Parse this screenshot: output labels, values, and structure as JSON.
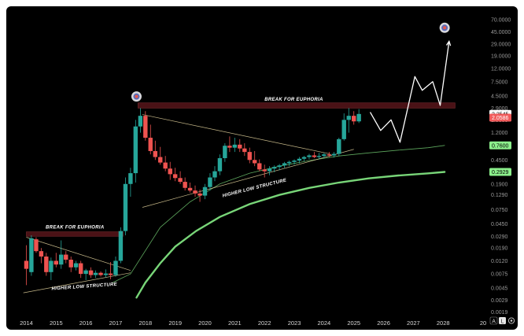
{
  "chart_data": {
    "type": "candlestick",
    "y_scale": "log",
    "ylim": [
      0.0015,
      95
    ],
    "y_ticks": [
      "70.0000",
      "45.0000",
      "29.0000",
      "19.0000",
      "12.0000",
      "7.5000",
      "4.5000",
      "2.9000",
      "1.9000",
      "1.2000",
      "0.7600",
      "0.4500",
      "0.2900",
      "0.1900",
      "0.1290",
      "0.0750",
      "0.0450",
      "0.0290",
      "0.0190",
      "0.0120",
      "0.0075",
      "0.0045",
      "0.0029",
      "0.0019"
    ],
    "y_tick_values": [
      70,
      45,
      29,
      19,
      12,
      7.5,
      4.5,
      2.9,
      1.9,
      1.2,
      0.76,
      0.45,
      0.29,
      0.19,
      0.129,
      0.075,
      0.045,
      0.029,
      0.019,
      0.012,
      0.0075,
      0.0045,
      0.0029,
      0.0019
    ],
    "x_ticks": [
      "2014",
      "2015",
      "2016",
      "2017",
      "2018",
      "2019",
      "2020",
      "2021",
      "2022",
      "2023",
      "2024",
      "2025",
      "2026",
      "2027",
      "2028",
      "20"
    ],
    "xlim": [
      2013.75,
      2029.5
    ],
    "candles": [
      {
        "t": 2014.0,
        "o": 0.012,
        "h": 0.021,
        "l": 0.005,
        "c": 0.009
      },
      {
        "t": 2014.17,
        "o": 0.008,
        "h": 0.03,
        "l": 0.007,
        "c": 0.027
      },
      {
        "t": 2014.33,
        "o": 0.026,
        "h": 0.028,
        "l": 0.016,
        "c": 0.017
      },
      {
        "t": 2014.5,
        "o": 0.017,
        "h": 0.019,
        "l": 0.011,
        "c": 0.014
      },
      {
        "t": 2014.67,
        "o": 0.014,
        "h": 0.016,
        "l": 0.007,
        "c": 0.008
      },
      {
        "t": 2014.83,
        "o": 0.008,
        "h": 0.0135,
        "l": 0.006,
        "c": 0.012
      },
      {
        "t": 2015.0,
        "o": 0.012,
        "h": 0.016,
        "l": 0.0095,
        "c": 0.0105
      },
      {
        "t": 2015.17,
        "o": 0.0105,
        "h": 0.025,
        "l": 0.009,
        "c": 0.015
      },
      {
        "t": 2015.33,
        "o": 0.015,
        "h": 0.017,
        "l": 0.011,
        "c": 0.0125
      },
      {
        "t": 2015.5,
        "o": 0.0125,
        "h": 0.014,
        "l": 0.008,
        "c": 0.0095
      },
      {
        "t": 2015.67,
        "o": 0.0095,
        "h": 0.012,
        "l": 0.0085,
        "c": 0.011
      },
      {
        "t": 2015.83,
        "o": 0.011,
        "h": 0.012,
        "l": 0.0065,
        "c": 0.0075
      },
      {
        "t": 2016.0,
        "o": 0.0075,
        "h": 0.009,
        "l": 0.006,
        "c": 0.0085
      },
      {
        "t": 2016.17,
        "o": 0.0085,
        "h": 0.0095,
        "l": 0.0065,
        "c": 0.0072
      },
      {
        "t": 2016.33,
        "o": 0.0072,
        "h": 0.0085,
        "l": 0.0065,
        "c": 0.0078
      },
      {
        "t": 2016.5,
        "o": 0.0078,
        "h": 0.0082,
        "l": 0.0068,
        "c": 0.0072
      },
      {
        "t": 2016.67,
        "o": 0.0072,
        "h": 0.0088,
        "l": 0.0066,
        "c": 0.0076
      },
      {
        "t": 2016.83,
        "o": 0.0076,
        "h": 0.0115,
        "l": 0.0062,
        "c": 0.0072
      },
      {
        "t": 2017.0,
        "o": 0.0072,
        "h": 0.014,
        "l": 0.0068,
        "c": 0.012
      },
      {
        "t": 2017.17,
        "o": 0.012,
        "h": 0.04,
        "l": 0.011,
        "c": 0.035
      },
      {
        "t": 2017.33,
        "o": 0.035,
        "h": 0.24,
        "l": 0.03,
        "c": 0.19
      },
      {
        "t": 2017.5,
        "o": 0.19,
        "h": 0.34,
        "l": 0.12,
        "c": 0.28
      },
      {
        "t": 2017.67,
        "o": 0.28,
        "h": 1.9,
        "l": 0.2,
        "c": 1.5
      },
      {
        "t": 2017.83,
        "o": 1.5,
        "h": 2.9,
        "l": 1.2,
        "c": 2.2
      },
      {
        "t": 2018.0,
        "o": 2.2,
        "h": 2.6,
        "l": 0.9,
        "c": 1.0
      },
      {
        "t": 2018.17,
        "o": 1.0,
        "h": 1.6,
        "l": 0.55,
        "c": 0.62
      },
      {
        "t": 2018.33,
        "o": 0.62,
        "h": 0.9,
        "l": 0.45,
        "c": 0.5
      },
      {
        "t": 2018.5,
        "o": 0.5,
        "h": 0.72,
        "l": 0.38,
        "c": 0.41
      },
      {
        "t": 2018.67,
        "o": 0.41,
        "h": 0.52,
        "l": 0.3,
        "c": 0.33
      },
      {
        "t": 2018.83,
        "o": 0.33,
        "h": 0.42,
        "l": 0.22,
        "c": 0.27
      },
      {
        "t": 2019.0,
        "o": 0.27,
        "h": 0.34,
        "l": 0.21,
        "c": 0.235
      },
      {
        "t": 2019.17,
        "o": 0.235,
        "h": 0.3,
        "l": 0.19,
        "c": 0.205
      },
      {
        "t": 2019.33,
        "o": 0.205,
        "h": 0.24,
        "l": 0.15,
        "c": 0.165
      },
      {
        "t": 2019.5,
        "o": 0.165,
        "h": 0.2,
        "l": 0.14,
        "c": 0.15
      },
      {
        "t": 2019.67,
        "o": 0.15,
        "h": 0.18,
        "l": 0.12,
        "c": 0.135
      },
      {
        "t": 2019.83,
        "o": 0.135,
        "h": 0.155,
        "l": 0.1,
        "c": 0.125
      },
      {
        "t": 2020.0,
        "o": 0.125,
        "h": 0.19,
        "l": 0.11,
        "c": 0.17
      },
      {
        "t": 2020.17,
        "o": 0.17,
        "h": 0.28,
        "l": 0.15,
        "c": 0.24
      },
      {
        "t": 2020.33,
        "o": 0.24,
        "h": 0.36,
        "l": 0.21,
        "c": 0.3
      },
      {
        "t": 2020.5,
        "o": 0.3,
        "h": 0.55,
        "l": 0.26,
        "c": 0.48
      },
      {
        "t": 2020.67,
        "o": 0.48,
        "h": 0.82,
        "l": 0.42,
        "c": 0.75
      },
      {
        "t": 2020.83,
        "o": 0.75,
        "h": 1.05,
        "l": 0.6,
        "c": 0.7
      },
      {
        "t": 2021.0,
        "o": 0.7,
        "h": 1.0,
        "l": 0.6,
        "c": 0.78
      },
      {
        "t": 2021.17,
        "o": 0.78,
        "h": 0.95,
        "l": 0.6,
        "c": 0.68
      },
      {
        "t": 2021.33,
        "o": 0.68,
        "h": 0.82,
        "l": 0.52,
        "c": 0.6
      },
      {
        "t": 2021.5,
        "o": 0.6,
        "h": 0.7,
        "l": 0.4,
        "c": 0.45
      },
      {
        "t": 2021.67,
        "o": 0.45,
        "h": 0.62,
        "l": 0.36,
        "c": 0.4
      },
      {
        "t": 2021.83,
        "o": 0.4,
        "h": 0.46,
        "l": 0.3,
        "c": 0.32
      },
      {
        "t": 2022.0,
        "o": 0.32,
        "h": 0.38,
        "l": 0.24,
        "c": 0.3
      },
      {
        "t": 2022.17,
        "o": 0.3,
        "h": 0.36,
        "l": 0.26,
        "c": 0.33
      },
      {
        "t": 2022.33,
        "o": 0.33,
        "h": 0.37,
        "l": 0.29,
        "c": 0.35
      },
      {
        "t": 2022.5,
        "o": 0.35,
        "h": 0.39,
        "l": 0.31,
        "c": 0.37
      },
      {
        "t": 2022.67,
        "o": 0.37,
        "h": 0.42,
        "l": 0.34,
        "c": 0.4
      },
      {
        "t": 2022.83,
        "o": 0.4,
        "h": 0.44,
        "l": 0.36,
        "c": 0.42
      },
      {
        "t": 2023.0,
        "o": 0.42,
        "h": 0.46,
        "l": 0.38,
        "c": 0.44
      },
      {
        "t": 2023.17,
        "o": 0.44,
        "h": 0.5,
        "l": 0.4,
        "c": 0.47
      },
      {
        "t": 2023.33,
        "o": 0.47,
        "h": 0.52,
        "l": 0.43,
        "c": 0.5
      },
      {
        "t": 2023.5,
        "o": 0.5,
        "h": 0.56,
        "l": 0.46,
        "c": 0.53
      },
      {
        "t": 2023.67,
        "o": 0.53,
        "h": 0.6,
        "l": 0.48,
        "c": 0.5
      },
      {
        "t": 2023.83,
        "o": 0.5,
        "h": 0.58,
        "l": 0.46,
        "c": 0.52
      },
      {
        "t": 2024.0,
        "o": 0.52,
        "h": 0.58,
        "l": 0.48,
        "c": 0.55
      },
      {
        "t": 2024.17,
        "o": 0.55,
        "h": 0.6,
        "l": 0.5,
        "c": 0.53
      },
      {
        "t": 2024.33,
        "o": 0.53,
        "h": 0.6,
        "l": 0.49,
        "c": 0.56
      },
      {
        "t": 2024.5,
        "o": 0.56,
        "h": 1.0,
        "l": 0.52,
        "c": 0.95
      },
      {
        "t": 2024.67,
        "o": 0.95,
        "h": 2.4,
        "l": 0.9,
        "c": 1.9
      },
      {
        "t": 2024.83,
        "o": 1.9,
        "h": 2.9,
        "l": 1.2,
        "c": 2.2
      },
      {
        "t": 2025.0,
        "o": 2.2,
        "h": 2.6,
        "l": 1.6,
        "c": 1.8
      },
      {
        "t": 2025.17,
        "o": 1.8,
        "h": 2.8,
        "l": 1.7,
        "c": 2.35
      }
    ],
    "colors": {
      "up": "#26a69a",
      "down": "#ef5350",
      "band": "#4a1216",
      "projection": "#ffffff",
      "curve": "#7ee07e",
      "structure": "#e8d7a0"
    },
    "annotations": {
      "band_2017_label": "BREAK FOR EUPHORIA",
      "band_2025_label": "BREAK FOR EUPHORIA",
      "structure_2016_label": "HIGHER LOW STRUCTURE",
      "structure_2021_label": "HIGHER LOW STRUCTURE"
    },
    "band_2017": {
      "t0": 2014.0,
      "t1": 2017.25,
      "hi": 0.034,
      "lo": 0.029
    },
    "band_2025": {
      "t0": 2017.75,
      "t1": 2028.4,
      "hi": 3.5,
      "lo": 2.9
    },
    "price_tags": [
      {
        "text": "2.3545",
        "value": 2.3545,
        "bg": "#ffffff",
        "fg": "#000000"
      },
      {
        "text": "2.0586",
        "value": 2.0586,
        "bg": "#f05a5a",
        "fg": "#ffffff"
      },
      {
        "text": "0.7600",
        "value": 0.76,
        "bg": "#8cf08c",
        "fg": "#000000"
      },
      {
        "text": "0.2929",
        "value": 0.2929,
        "bg": "#8cf08c",
        "fg": "#000000"
      }
    ],
    "projection_path": [
      [
        2025.55,
        2.5
      ],
      [
        2025.9,
        1.3
      ],
      [
        2026.25,
        1.9
      ],
      [
        2026.55,
        0.85
      ],
      [
        2027.05,
        9.0
      ],
      [
        2027.3,
        5.5
      ],
      [
        2027.65,
        7.5
      ],
      [
        2027.9,
        3.2
      ],
      [
        2028.2,
        32
      ]
    ],
    "trend_lines": [
      {
        "name": "triangle_2014_upper",
        "points": [
          [
            2014.0,
            0.028
          ],
          [
            2017.5,
            0.0085
          ]
        ]
      },
      {
        "name": "triangle_2014_lower",
        "points": [
          [
            2013.9,
            0.0038
          ],
          [
            2017.5,
            0.0078
          ]
        ]
      },
      {
        "name": "triangle_2018_upper",
        "points": [
          [
            2017.9,
            2.3
          ],
          [
            2024.2,
            0.56
          ]
        ]
      },
      {
        "name": "triangle_2018_lower",
        "points": [
          [
            2017.9,
            0.082
          ],
          [
            2025.0,
            0.66
          ]
        ]
      }
    ],
    "curves": [
      {
        "name": "thin_curve",
        "width": 0.8,
        "points": [
          [
            2016.9,
            0.0055
          ],
          [
            2017.5,
            0.0075
          ],
          [
            2018.5,
            0.04
          ],
          [
            2019.5,
            0.1
          ],
          [
            2020.5,
            0.19
          ],
          [
            2021.5,
            0.28
          ],
          [
            2022.5,
            0.36
          ],
          [
            2023.5,
            0.44
          ],
          [
            2024.5,
            0.52
          ],
          [
            2025.5,
            0.58
          ],
          [
            2026.5,
            0.64
          ],
          [
            2027.5,
            0.7
          ],
          [
            2028.05,
            0.76
          ]
        ]
      },
      {
        "name": "thick_curve",
        "width": 2.4,
        "points": [
          [
            2017.7,
            0.0032
          ],
          [
            2018.0,
            0.0055
          ],
          [
            2018.5,
            0.011
          ],
          [
            2019.0,
            0.02
          ],
          [
            2019.7,
            0.035
          ],
          [
            2020.5,
            0.058
          ],
          [
            2021.5,
            0.092
          ],
          [
            2022.5,
            0.128
          ],
          [
            2023.5,
            0.165
          ],
          [
            2024.5,
            0.2
          ],
          [
            2025.5,
            0.232
          ],
          [
            2026.5,
            0.258
          ],
          [
            2027.5,
            0.278
          ],
          [
            2028.05,
            0.2929
          ]
        ]
      }
    ],
    "targets": [
      {
        "name": "target_2018",
        "t": 2017.7,
        "value": 4.4
      },
      {
        "name": "target_2028",
        "t": 2028.05,
        "value": 52
      }
    ],
    "scale_buttons": [
      "A",
      "L"
    ]
  }
}
